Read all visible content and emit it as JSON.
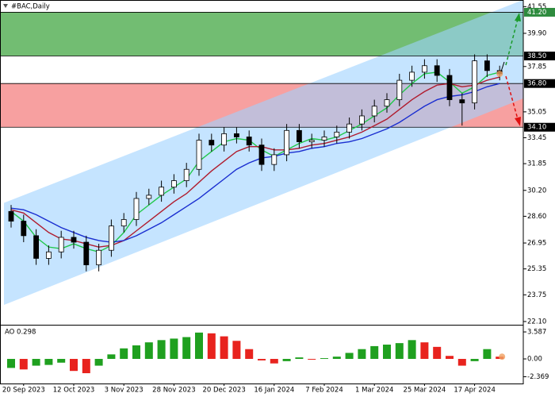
{
  "chart_data": [
    {
      "type": "candlestick",
      "title": "#BAC,Daily",
      "categories": [
        null,
        "20 Sep 2023",
        null,
        null,
        null,
        "12 Oct 2023",
        null,
        null,
        null,
        "3 Nov 2023",
        null,
        null,
        null,
        "28 Nov 2023",
        null,
        null,
        null,
        "20 Dec 2023",
        null,
        null,
        null,
        "16 Jan 2024",
        null,
        null,
        null,
        "7 Feb 2024",
        null,
        null,
        null,
        "1 Mar 2024",
        null,
        null,
        null,
        "25 Mar 2024",
        null,
        null,
        null,
        "17 Apr 2024",
        null,
        null
      ],
      "open": [
        28.9,
        28.3,
        27.4,
        26.0,
        26.4,
        27.3,
        27.0,
        25.6,
        26.5,
        28.0,
        28.4,
        29.7,
        29.9,
        30.4,
        30.8,
        31.5,
        33.3,
        33.0,
        33.7,
        33.5,
        33.0,
        31.8,
        32.4,
        33.9,
        33.2,
        33.3,
        33.5,
        33.8,
        34.3,
        34.8,
        35.4,
        35.8,
        37.0,
        37.5,
        37.9,
        37.3,
        35.8,
        35.6,
        38.2,
        37.6
      ],
      "high": [
        29.3,
        28.7,
        27.8,
        26.8,
        27.7,
        27.7,
        27.4,
        26.9,
        28.4,
        28.8,
        30.1,
        30.3,
        30.8,
        31.2,
        31.9,
        33.7,
        33.7,
        34.1,
        34.1,
        33.9,
        33.4,
        32.8,
        34.3,
        34.3,
        33.7,
        33.9,
        34.2,
        34.7,
        35.2,
        35.8,
        36.2,
        37.4,
        37.9,
        38.3,
        38.3,
        37.7,
        36.2,
        38.6,
        38.6,
        37.9
      ],
      "low": [
        27.9,
        27.0,
        25.6,
        25.6,
        26.0,
        26.6,
        25.2,
        25.2,
        26.1,
        27.6,
        28.0,
        29.3,
        29.5,
        30.0,
        30.4,
        31.1,
        32.6,
        32.6,
        33.1,
        32.6,
        31.4,
        31.4,
        32.0,
        32.8,
        32.8,
        32.9,
        33.1,
        33.4,
        33.9,
        34.4,
        35.0,
        35.4,
        36.6,
        37.1,
        36.9,
        35.4,
        34.2,
        35.2,
        37.2,
        37.0
      ],
      "close": [
        28.3,
        27.4,
        26.0,
        26.4,
        27.3,
        27.0,
        25.6,
        26.5,
        28.0,
        28.4,
        29.7,
        29.9,
        30.4,
        30.8,
        31.5,
        33.3,
        33.0,
        33.7,
        33.5,
        33.0,
        31.8,
        32.4,
        33.9,
        33.2,
        33.3,
        33.5,
        33.8,
        34.3,
        34.8,
        35.4,
        35.8,
        37.0,
        37.5,
        37.9,
        37.3,
        35.8,
        35.6,
        38.2,
        37.6,
        37.4
      ],
      "up_color": "#ffffff",
      "down_color": "#000000",
      "series": [
        {
          "color": "#22c84a",
          "values": [
            28.9,
            28.3,
            27.3,
            26.7,
            26.6,
            26.9,
            26.6,
            26.4,
            26.8,
            27.6,
            28.7,
            29.3,
            29.9,
            30.4,
            30.9,
            32.0,
            32.6,
            33.2,
            33.4,
            33.3,
            32.7,
            32.3,
            32.7,
            33.1,
            33.4,
            33.3,
            33.5,
            33.9,
            34.3,
            34.8,
            35.3,
            36.1,
            36.8,
            37.4,
            37.5,
            36.9,
            36.2,
            36.6,
            37.3,
            37.5
          ]
        },
        {
          "color": "#b01c2e",
          "values": [
            29.0,
            28.8,
            28.2,
            27.6,
            27.2,
            27.1,
            26.9,
            26.7,
            26.8,
            27.1,
            27.7,
            28.3,
            28.9,
            29.5,
            30.0,
            30.7,
            31.4,
            32.0,
            32.6,
            32.9,
            32.9,
            32.7,
            32.7,
            32.8,
            33.0,
            33.1,
            33.3,
            33.5,
            33.8,
            34.2,
            34.6,
            35.2,
            35.8,
            36.3,
            36.7,
            36.8,
            36.6,
            36.7,
            37.0,
            37.2
          ]
        },
        {
          "color": "#1a2ed0",
          "values": [
            29.1,
            29.0,
            28.7,
            28.3,
            27.9,
            27.6,
            27.3,
            27.1,
            27.0,
            27.1,
            27.4,
            27.8,
            28.2,
            28.7,
            29.2,
            29.7,
            30.3,
            30.9,
            31.5,
            31.9,
            32.2,
            32.3,
            32.5,
            32.6,
            32.8,
            32.9,
            33.1,
            33.2,
            33.4,
            33.7,
            34.0,
            34.4,
            34.9,
            35.4,
            35.8,
            36.0,
            36.1,
            36.3,
            36.6,
            36.8
          ]
        }
      ],
      "channel": {
        "color": "#9fd2ff",
        "upper": [
          29.6,
          41.4
        ],
        "lower": [
          23.3,
          35.3
        ]
      },
      "zones": [
        {
          "from": 38.5,
          "to": 41.2,
          "color": "#72bd72"
        },
        {
          "from": 34.1,
          "to": 36.8,
          "color": "#f7a0a0"
        }
      ],
      "levels": [
        {
          "value": 41.2,
          "label": "41.20",
          "color": "#2e8b3e"
        },
        {
          "value": 38.5,
          "label": "38.50",
          "color": "#000000"
        },
        {
          "value": 36.8,
          "label": "36.80",
          "color": "#000000"
        },
        {
          "value": 34.1,
          "label": "34.10",
          "color": "#000000"
        }
      ],
      "ylim": [
        21.95,
        41.86
      ],
      "yticks": [
        41.55,
        {
          "value": 39.9,
          "label": "39.90"
        },
        37.85,
        35.05,
        33.45,
        31.85,
        {
          "value": 30.2,
          "label": "30.20"
        },
        {
          "value": 28.6,
          "label": "28.60"
        },
        26.95,
        25.35,
        23.75,
        {
          "value": 22.1,
          "label": "22.10"
        }
      ]
    },
    {
      "type": "bar",
      "title": "AO 0.298",
      "values": [
        -1.2,
        -1.4,
        -0.9,
        -0.8,
        -0.5,
        -1.6,
        -1.9,
        -0.9,
        0.6,
        1.4,
        1.8,
        2.2,
        2.5,
        2.7,
        2.9,
        3.5,
        3.4,
        3.0,
        2.4,
        1.3,
        -0.2,
        -0.6,
        -0.3,
        0.2,
        -0.1,
        0.1,
        0.3,
        0.8,
        1.3,
        1.7,
        1.9,
        2.1,
        2.5,
        2.2,
        1.6,
        0.4,
        -0.9,
        -0.3,
        1.3,
        0.298
      ],
      "up_color": "#1fa01f",
      "down_color": "#e8231e",
      "ylim": [
        -3.27,
        4.33
      ],
      "yticks": [
        3.587,
        {
          "value": 0,
          "label": "0.00"
        },
        -2.369
      ]
    }
  ]
}
